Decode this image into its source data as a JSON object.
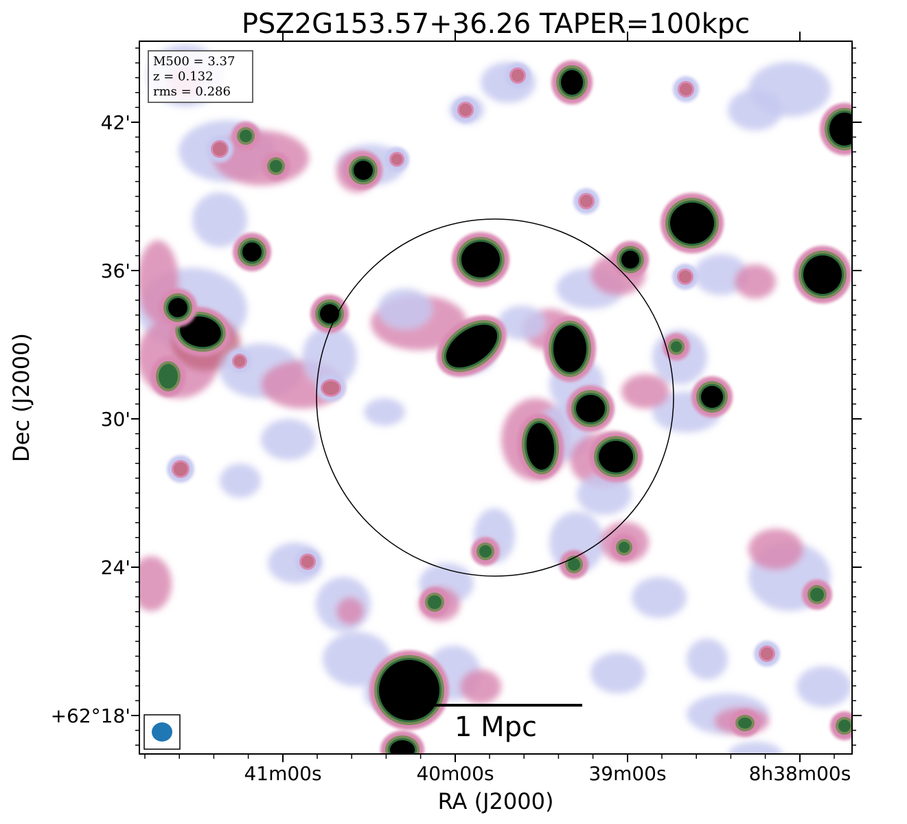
{
  "title": "PSZ2G153.57+36.26 TAPER=100kpc",
  "axes": {
    "xlabel": "RA (J2000)",
    "ylabel": "Dec (J2000)",
    "x_ticks": [
      "41m00s",
      "40m00s",
      "39m00s",
      "8h38m00s"
    ],
    "y_ticks": [
      "42'",
      "36'",
      "30'",
      "24'",
      "+62°18'"
    ]
  },
  "info_box": {
    "m500": "M500 = 3.37",
    "z": "z = 0.132",
    "rms": "rms = 0.286"
  },
  "scalebar": {
    "label": "1 Mpc"
  },
  "colors": {
    "faint": "#c7c9f0",
    "pink": "#d98ab3",
    "rose": "#c56f88",
    "olive": "#7a8a5a",
    "green": "#2f6e3c",
    "core": "#000000",
    "beam": "#1f77b4"
  }
}
